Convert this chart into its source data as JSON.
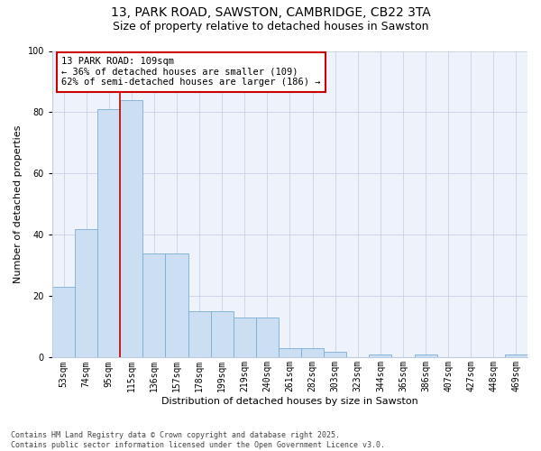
{
  "title1": "13, PARK ROAD, SAWSTON, CAMBRIDGE, CB22 3TA",
  "title2": "Size of property relative to detached houses in Sawston",
  "xlabel": "Distribution of detached houses by size in Sawston",
  "ylabel": "Number of detached properties",
  "categories": [
    "53sqm",
    "74sqm",
    "95sqm",
    "115sqm",
    "136sqm",
    "157sqm",
    "178sqm",
    "199sqm",
    "219sqm",
    "240sqm",
    "261sqm",
    "282sqm",
    "303sqm",
    "323sqm",
    "344sqm",
    "365sqm",
    "386sqm",
    "407sqm",
    "427sqm",
    "448sqm",
    "469sqm"
  ],
  "values": [
    23,
    42,
    81,
    84,
    34,
    34,
    15,
    15,
    13,
    13,
    3,
    3,
    2,
    0,
    1,
    0,
    1,
    0,
    0,
    0,
    1
  ],
  "bar_color": "#ccdff2",
  "bar_edge_color": "#7aadd4",
  "bg_color": "#edf2fb",
  "grid_color": "#c0cce0",
  "vline_x": 2.5,
  "vline_color": "#cc0000",
  "annotation_text": "13 PARK ROAD: 109sqm\n← 36% of detached houses are smaller (109)\n62% of semi-detached houses are larger (186) →",
  "footer": "Contains HM Land Registry data © Crown copyright and database right 2025.\nContains public sector information licensed under the Open Government Licence v3.0.",
  "ylim": [
    0,
    100
  ],
  "yticks": [
    0,
    20,
    40,
    60,
    80,
    100
  ],
  "title_fontsize": 10,
  "subtitle_fontsize": 9,
  "axis_label_fontsize": 8,
  "tick_fontsize": 7,
  "annotation_fontsize": 7.5,
  "footer_fontsize": 6
}
